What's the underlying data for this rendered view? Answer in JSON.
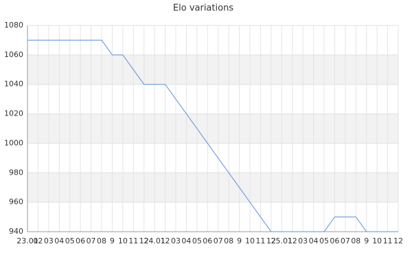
{
  "chart_data": {
    "type": "line",
    "title": "Elo variations",
    "categories": [
      "23.01",
      "02",
      "03",
      "04",
      "05",
      "06",
      "07",
      "08",
      "9",
      "10",
      "11",
      "12",
      "24.01",
      "12",
      "03",
      "04",
      "05",
      "06",
      "07",
      "08",
      "9",
      "10",
      "11",
      "12",
      "25.01",
      "12",
      "03",
      "04",
      "05",
      "06",
      "07",
      "08",
      "9",
      "10",
      "11",
      "12"
    ],
    "series": [
      {
        "name": "Elo",
        "color": "#5b8fd9",
        "values": [
          1070,
          1070,
          1070,
          1070,
          1070,
          1070,
          1070,
          1070,
          1060,
          1060,
          1050,
          1040,
          1040,
          1040,
          1030,
          1020,
          1010,
          1000,
          990,
          980,
          970,
          960,
          950,
          940,
          940,
          940,
          940,
          940,
          940,
          950,
          950,
          950,
          940,
          940,
          940,
          940
        ]
      }
    ],
    "ylim": [
      940,
      1080
    ],
    "yticks": [
      940,
      960,
      980,
      1000,
      1020,
      1040,
      1060,
      1080
    ],
    "grid": true
  }
}
